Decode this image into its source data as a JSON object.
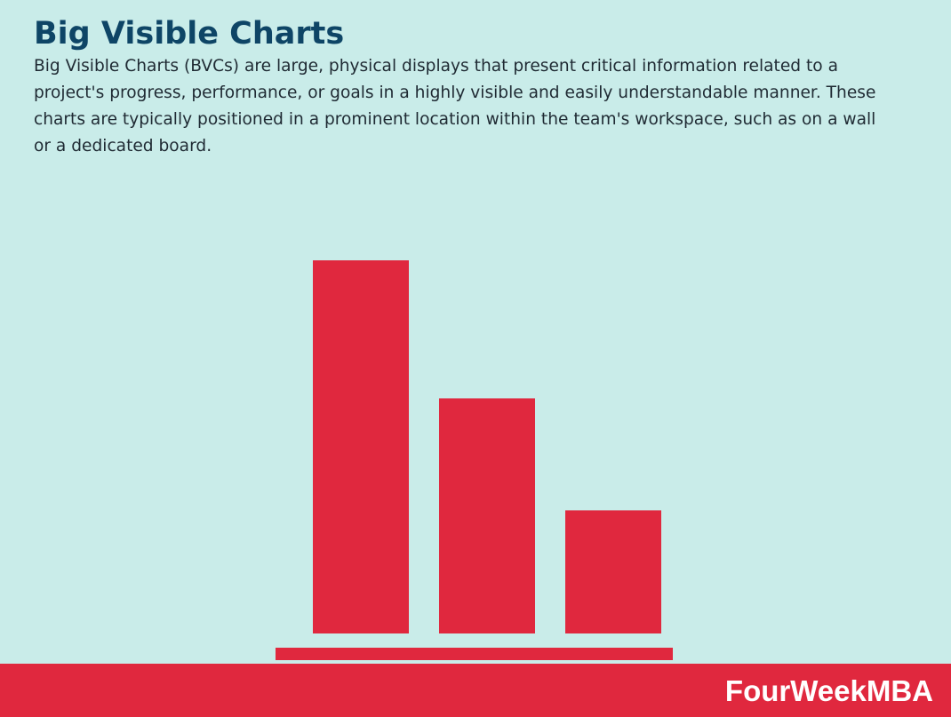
{
  "header": {
    "title": "Big Visible Charts",
    "description": "Big Visible Charts (BVCs) are large, physical displays that present critical information related to a project's progress, performance, or goals in a highly visible and easily understandable manner. These charts are typically positioned in a prominent location within the team's workspace, such as on a wall or a dedicated board."
  },
  "chart_data": {
    "type": "bar",
    "categories": [
      "",
      "",
      ""
    ],
    "values": [
      100,
      63,
      33
    ],
    "title": "",
    "xlabel": "",
    "ylabel": "",
    "ylim": [
      0,
      100
    ],
    "grid": false,
    "legend": "none",
    "colors": {
      "bar": "#e0283e",
      "baseline": "#e0283e"
    }
  },
  "footer": {
    "brand": "FourWeekMBA"
  },
  "colors": {
    "background": "#c9ece9",
    "title": "#0e4566",
    "accent": "#e0283e"
  }
}
